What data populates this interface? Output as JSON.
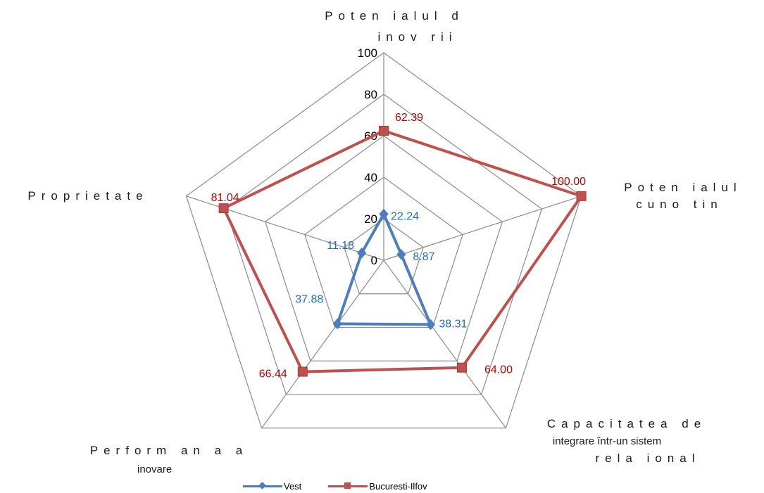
{
  "chart_data": {
    "type": "radar",
    "axes": [
      {
        "lines": [
          "Poten ialul d",
          "inov rii"
        ]
      },
      {
        "lines": [
          "Poten ialul",
          "cuno tin"
        ]
      },
      {
        "lines": [
          "Capacitatea de",
          "integrare într-un sistem",
          "rela ional"
        ]
      },
      {
        "lines": [
          "Perform an a a",
          "inovare"
        ]
      },
      {
        "lines": [
          "Proprietate"
        ]
      }
    ],
    "rlim": [
      0,
      100
    ],
    "ticks": [
      0,
      20,
      40,
      60,
      80,
      100
    ],
    "tick_labels": [
      "0",
      "20",
      "40",
      "60",
      "80",
      "100"
    ],
    "grid": true,
    "legend_position": "bottom",
    "series": [
      {
        "name": "Vest",
        "color": "#4a7ebf",
        "marker": "diamond",
        "values": [
          22.24,
          8.87,
          38.31,
          37.88,
          11.18
        ],
        "labels": [
          "22.24",
          "8.87",
          "38.31",
          "37.88",
          "11.18"
        ],
        "label_color": "#1f6fbf"
      },
      {
        "name": "Bucuresti-Ilfov",
        "color": "#c0504d",
        "marker": "square",
        "values": [
          62.39,
          100.0,
          64.0,
          66.44,
          81.04
        ],
        "labels": [
          "62.39",
          "100.00",
          "64.00",
          "66.44",
          "81.04"
        ],
        "label_color": "#c00000"
      }
    ]
  }
}
